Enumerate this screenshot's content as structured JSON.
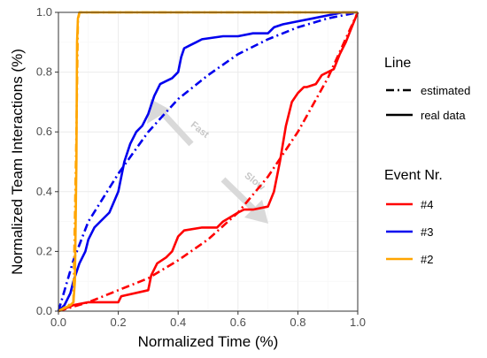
{
  "chart_data": {
    "type": "line",
    "xlabel": "Normalized Time (%)",
    "ylabel": "Normalized Team Interactions (%)",
    "xlim": [
      0,
      1
    ],
    "ylim": [
      0,
      1
    ],
    "xticks": [
      "0.0",
      "0.2",
      "0.4",
      "0.6",
      "0.8",
      "1.0"
    ],
    "yticks": [
      "0.0",
      "0.2",
      "0.4",
      "0.6",
      "0.8",
      "1.0"
    ],
    "grid": true,
    "legend_line": {
      "title": "Line",
      "entries": [
        {
          "label": "estimated",
          "style": "dashdot"
        },
        {
          "label": "real data",
          "style": "solid"
        }
      ]
    },
    "legend_event": {
      "title": "Event Nr.",
      "entries": [
        {
          "label": "#4",
          "color": "#ff0000"
        },
        {
          "label": "#3",
          "color": "#0000ee"
        },
        {
          "label": "#2",
          "color": "#ffa500"
        }
      ]
    },
    "annotations": [
      {
        "text": "Fast",
        "x": 0.44,
        "y": 0.62
      },
      {
        "text": "Slow",
        "x": 0.62,
        "y": 0.45
      }
    ],
    "series": [
      {
        "name": "#4",
        "kind": "real data",
        "color": "#ff0000",
        "x": [
          0.0,
          0.05,
          0.1,
          0.2,
          0.21,
          0.3,
          0.31,
          0.33,
          0.36,
          0.38,
          0.4,
          0.42,
          0.48,
          0.53,
          0.55,
          0.6,
          0.62,
          0.65,
          0.7,
          0.72,
          0.74,
          0.76,
          0.78,
          0.8,
          0.82,
          0.83,
          0.86,
          0.88,
          0.92,
          0.94,
          0.96,
          0.98,
          1.0
        ],
        "y": [
          0.0,
          0.02,
          0.03,
          0.03,
          0.05,
          0.07,
          0.12,
          0.16,
          0.18,
          0.2,
          0.25,
          0.27,
          0.28,
          0.28,
          0.3,
          0.33,
          0.34,
          0.34,
          0.35,
          0.4,
          0.5,
          0.62,
          0.7,
          0.73,
          0.75,
          0.75,
          0.76,
          0.79,
          0.81,
          0.86,
          0.9,
          0.95,
          1.0
        ]
      },
      {
        "name": "#4",
        "kind": "estimated",
        "color": "#ff0000",
        "x": [
          0.0,
          0.1,
          0.2,
          0.3,
          0.4,
          0.5,
          0.6,
          0.7,
          0.8,
          0.9,
          1.0
        ],
        "y": [
          0.0,
          0.03,
          0.07,
          0.11,
          0.17,
          0.24,
          0.33,
          0.45,
          0.6,
          0.78,
          1.0
        ]
      },
      {
        "name": "#3",
        "kind": "real data",
        "color": "#0000ee",
        "x": [
          0.0,
          0.02,
          0.04,
          0.05,
          0.06,
          0.07,
          0.09,
          0.1,
          0.12,
          0.14,
          0.17,
          0.2,
          0.22,
          0.24,
          0.26,
          0.28,
          0.3,
          0.32,
          0.34,
          0.36,
          0.38,
          0.4,
          0.41,
          0.42,
          0.44,
          0.46,
          0.48,
          0.55,
          0.6,
          0.65,
          0.7,
          0.72,
          0.75,
          0.8,
          0.85,
          0.9,
          0.95,
          1.0
        ],
        "y": [
          0.0,
          0.02,
          0.06,
          0.1,
          0.13,
          0.16,
          0.2,
          0.24,
          0.28,
          0.3,
          0.33,
          0.4,
          0.5,
          0.56,
          0.6,
          0.62,
          0.66,
          0.72,
          0.76,
          0.77,
          0.78,
          0.8,
          0.85,
          0.88,
          0.89,
          0.9,
          0.91,
          0.92,
          0.92,
          0.93,
          0.93,
          0.95,
          0.96,
          0.97,
          0.98,
          0.99,
          1.0,
          1.0
        ]
      },
      {
        "name": "#3",
        "kind": "estimated",
        "color": "#0000ee",
        "x": [
          0.0,
          0.05,
          0.1,
          0.15,
          0.2,
          0.3,
          0.4,
          0.5,
          0.6,
          0.7,
          0.8,
          0.9,
          1.0
        ],
        "y": [
          0.0,
          0.17,
          0.3,
          0.38,
          0.46,
          0.6,
          0.71,
          0.79,
          0.86,
          0.91,
          0.95,
          0.98,
          1.0
        ]
      },
      {
        "name": "#2",
        "kind": "real data",
        "color": "#ffa500",
        "x": [
          0.0,
          0.04,
          0.05,
          0.055,
          0.06,
          0.062,
          0.065,
          0.07,
          1.0
        ],
        "y": [
          0.0,
          0.02,
          0.03,
          0.1,
          0.5,
          0.9,
          0.98,
          1.0,
          1.0
        ]
      },
      {
        "name": "#2",
        "kind": "estimated",
        "color": "#ffa500",
        "x": [
          0.0,
          0.05,
          0.06,
          0.065,
          0.07,
          1.0
        ],
        "y": [
          0.0,
          0.03,
          0.6,
          0.97,
          1.0,
          1.0
        ]
      }
    ]
  }
}
